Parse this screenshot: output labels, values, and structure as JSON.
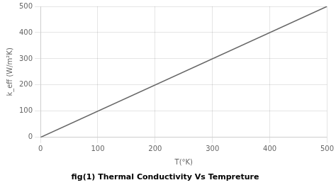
{
  "chart_data": {
    "type": "line",
    "title": "fig(1) Thermal Conductivity Vs Tempreture",
    "xlabel": "T(°K)",
    "ylabel": "k_eff (W/m²K)",
    "x": [
      0,
      500
    ],
    "values": [
      0,
      500
    ],
    "color": "#666666",
    "xlim": [
      0,
      500
    ],
    "ylim": [
      0,
      500
    ],
    "xticks": [
      0,
      100,
      200,
      300,
      400,
      500
    ],
    "yticks": [
      0,
      100,
      200,
      300,
      400,
      500
    ],
    "grid": true
  }
}
